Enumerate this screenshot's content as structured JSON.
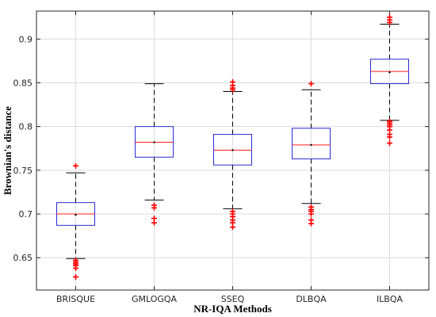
{
  "chart_data": {
    "type": "boxplot",
    "title": "",
    "xlabel": "NR-IQA Methods",
    "ylabel": "Brownian's distance",
    "ylim": [
      0.613,
      0.932
    ],
    "yticks": [
      0.65,
      0.7,
      0.75,
      0.8,
      0.85,
      0.9
    ],
    "ytick_labels": [
      "0.65",
      "0.7",
      "0.75",
      "0.8",
      "0.85",
      "0.9"
    ],
    "grid": true,
    "categories": [
      "BRISQUE",
      "GMLOGQA",
      "SSEQ",
      "DLBQA",
      "ILBQA"
    ],
    "boxes": [
      {
        "name": "BRISQUE",
        "whisker_low": 0.649,
        "q1": 0.687,
        "median": 0.7,
        "mean": 0.699,
        "q3": 0.713,
        "whisker_high": 0.747,
        "outliers": [
          0.628,
          0.638,
          0.641,
          0.643,
          0.645,
          0.647,
          0.755
        ]
      },
      {
        "name": "GMLOGQA",
        "whisker_low": 0.716,
        "q1": 0.765,
        "median": 0.782,
        "mean": 0.782,
        "q3": 0.8,
        "whisker_high": 0.849,
        "outliers": [
          0.69,
          0.695,
          0.707,
          0.71
        ]
      },
      {
        "name": "SSEQ",
        "whisker_low": 0.706,
        "q1": 0.756,
        "median": 0.773,
        "mean": 0.773,
        "q3": 0.791,
        "whisker_high": 0.84,
        "outliers": [
          0.685,
          0.69,
          0.693,
          0.697,
          0.7,
          0.703,
          0.842,
          0.844,
          0.847,
          0.851
        ]
      },
      {
        "name": "DLBQA",
        "whisker_low": 0.712,
        "q1": 0.763,
        "median": 0.779,
        "mean": 0.779,
        "q3": 0.798,
        "whisker_high": 0.842,
        "outliers": [
          0.689,
          0.693,
          0.7,
          0.703,
          0.705,
          0.708,
          0.849
        ]
      },
      {
        "name": "ILBQA",
        "whisker_low": 0.807,
        "q1": 0.849,
        "median": 0.863,
        "mean": 0.862,
        "q3": 0.877,
        "whisker_high": 0.917,
        "outliers": [
          0.781,
          0.788,
          0.791,
          0.796,
          0.8,
          0.802,
          0.804,
          0.806,
          0.919,
          0.922,
          0.925
        ]
      }
    ]
  },
  "colors": {
    "box": "#2b2bd6",
    "median": "#ff1f1f",
    "whisker": "#000000",
    "outlier": "#ff0000",
    "grid": "#dcdcdc",
    "axis": "#262626"
  }
}
